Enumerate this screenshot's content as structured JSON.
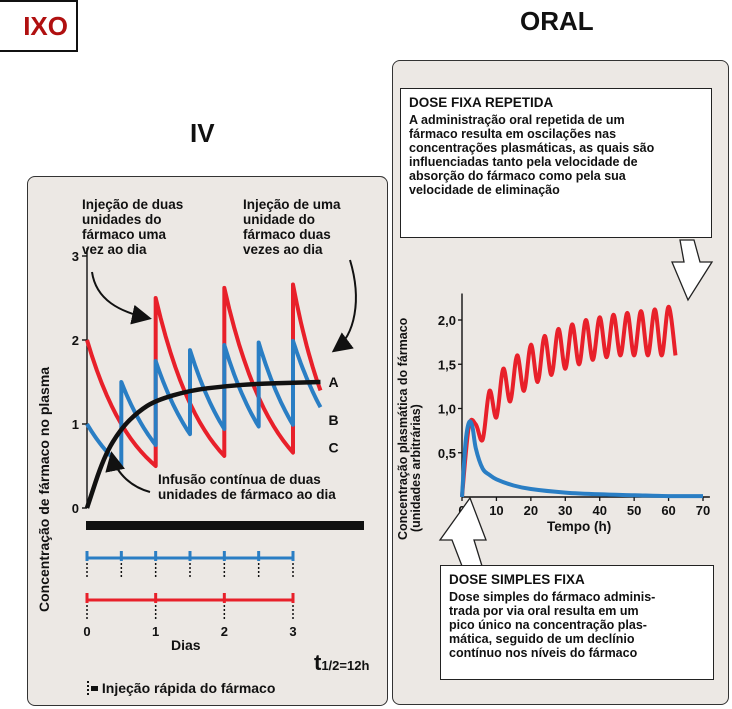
{
  "header": {
    "left_partial_label": "IXO",
    "oral_title": "ORAL",
    "iv_title": "IV"
  },
  "colors": {
    "red": "#e8202a",
    "blue": "#2a7ec4",
    "black": "#111111",
    "panel_bg": "#ece8e4"
  },
  "iv_chart": {
    "ylabel": "Concentração de fármaco no plasma",
    "xlabel": "Dias",
    "ylim": [
      0,
      3
    ],
    "xlim": [
      0,
      3.4
    ],
    "y_ticks": [
      "0",
      "1",
      "2",
      "3"
    ],
    "x_ticks": [
      "0",
      "1",
      "2",
      "3"
    ],
    "half_life": "t",
    "half_life_sub": "1/2=12h",
    "annotation_red": "Injeção de duas\nunidades do\nfármaco uma\nvez ao dia",
    "annotation_blue": "Injeção de uma\nunidade do\nfármaco duas\nvezes ao dia",
    "annotation_black": "Infusão contínua de duas\nunidades de fármaco ao dia",
    "series_labels": [
      "A",
      "B",
      "C"
    ],
    "legend_text": "Injeção rápida do fármaco",
    "blue_injection_days": [
      0,
      0.5,
      1,
      1.5,
      2,
      2.5,
      3
    ],
    "red_injection_days": [
      0,
      1,
      2,
      3
    ]
  },
  "oral_chart": {
    "ylabel": "Concentração plasmática do fármaco",
    "ylabel2": "(unidades arbitrárias)",
    "xlabel": "Tempo (h)",
    "ylim": [
      0,
      2.3
    ],
    "xlim": [
      0,
      72
    ],
    "y_ticks": [
      "0,5",
      "1,0",
      "1,5",
      "2,0"
    ],
    "x_ticks": [
      "0",
      "10",
      "20",
      "30",
      "40",
      "50",
      "60",
      "70"
    ],
    "box_repeated": {
      "title": "DOSE FIXA REPETIDA",
      "text": "A administração oral repetida de um\nfármaco resulta em oscilações nas\nconcentrações plasmáticas, as quais são\ninfluenciadas tanto pela velocidade de\nabsorção do fármaco como pela sua\nvelocidade de eliminação"
    },
    "box_single": {
      "title": "DOSE SIMPLES FIXA",
      "text": "Dose simples do fármaco adminis-\ntrada por via oral resulta em um\npico único na concentração plas-\nmática, seguido de um declínio\ncontínuo nos níveis do fármaco"
    }
  },
  "chart_data": [
    {
      "type": "line",
      "x_unit": "days",
      "xlim": [
        0,
        3.4
      ],
      "ylim": [
        0,
        3
      ],
      "series": [
        {
          "name": "A",
          "x": [
            0,
            0.25,
            0.5,
            0.75,
            1,
            1.5,
            2,
            2.5,
            3,
            3.4
          ],
          "values": [
            0,
            0.62,
            0.95,
            1.15,
            1.28,
            1.4,
            1.45,
            1.48,
            1.49,
            1.5
          ]
        },
        {
          "name": "B",
          "x": [
            0,
            0.5,
            0.5,
            1,
            1,
            1.5,
            1.5,
            2,
            2,
            2.5,
            2.5,
            3,
            3,
            3.4
          ],
          "values": [
            1,
            0.5,
            1.5,
            0.75,
            1.75,
            0.88,
            1.88,
            0.94,
            1.94,
            0.97,
            1.97,
            0.99,
            1.99,
            1.2
          ]
        },
        {
          "name": "C",
          "x": [
            0,
            1,
            1,
            2,
            2,
            3,
            3,
            3.4
          ],
          "values": [
            2,
            0.5,
            2.5,
            0.62,
            2.62,
            0.66,
            2.66,
            1.4
          ]
        }
      ]
    },
    {
      "type": "line",
      "x_unit": "hours",
      "xlim": [
        0,
        72
      ],
      "ylim": [
        0,
        2.3
      ],
      "series": [
        {
          "name": "repeated",
          "x": [
            0,
            2,
            4,
            6,
            8,
            10,
            12,
            14,
            16,
            18,
            20,
            22,
            24,
            26,
            28,
            30,
            32,
            34,
            36,
            38,
            40,
            42,
            44,
            46,
            48,
            50,
            52,
            54,
            56,
            58,
            60,
            62
          ],
          "values": [
            0,
            0.8,
            0.82,
            0.65,
            1.2,
            0.9,
            1.45,
            1.08,
            1.6,
            1.2,
            1.72,
            1.3,
            1.82,
            1.38,
            1.9,
            1.45,
            1.95,
            1.5,
            2.0,
            1.55,
            2.03,
            1.58,
            2.06,
            1.6,
            2.08,
            1.6,
            2.1,
            1.6,
            2.12,
            1.6,
            2.15,
            1.6
          ]
        },
        {
          "name": "single",
          "x": [
            0,
            1,
            2,
            3,
            4,
            6,
            8,
            10,
            15,
            20,
            30,
            40,
            50,
            60,
            70
          ],
          "values": [
            0,
            0.6,
            0.84,
            0.8,
            0.55,
            0.32,
            0.25,
            0.2,
            0.13,
            0.09,
            0.05,
            0.03,
            0.02,
            0.01,
            0.01
          ]
        }
      ]
    }
  ]
}
